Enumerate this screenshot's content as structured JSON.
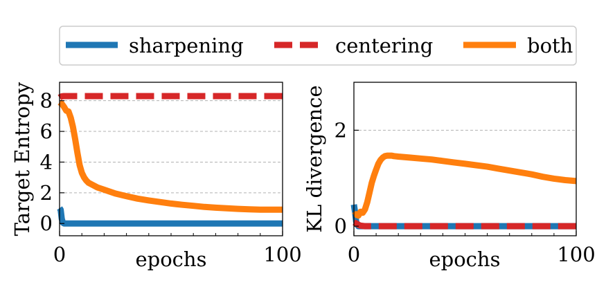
{
  "legend": {
    "items": [
      {
        "label": "sharpening",
        "color": "#1f77b4",
        "style": "solid"
      },
      {
        "label": "centering",
        "color": "#d62728",
        "style": "dashed"
      },
      {
        "label": "both",
        "color": "#ff7f0e",
        "style": "solid"
      }
    ],
    "placement": "top-center"
  },
  "chart_data": [
    {
      "type": "line",
      "xlabel": "epochs",
      "ylabel": "Target Entropy",
      "xlim": [
        0,
        100
      ],
      "ylim": [
        -0.8,
        9.2
      ],
      "x_ticks": [
        0,
        100
      ],
      "y_ticks": [
        0,
        2,
        4,
        6,
        8
      ],
      "grid": "horizontal-dashed",
      "series": [
        {
          "name": "sharpening",
          "color": "#1f77b4",
          "dash": "solid",
          "x": [
            0,
            0.5,
            1,
            1.5,
            2,
            100
          ],
          "y": [
            1.0,
            0.9,
            0.3,
            0.05,
            0.0,
            0.0
          ]
        },
        {
          "name": "centering",
          "color": "#d62728",
          "dash": "dashed",
          "x": [
            0,
            0.5,
            1,
            2,
            3,
            100
          ],
          "y": [
            8.2,
            8.25,
            8.28,
            8.3,
            8.3,
            8.3
          ]
        },
        {
          "name": "both",
          "color": "#ff7f0e",
          "dash": "solid",
          "x": [
            0,
            1,
            2,
            3,
            4,
            5,
            6,
            7,
            8,
            9,
            10,
            11,
            12,
            13,
            15,
            17,
            20,
            25,
            30,
            35,
            40,
            45,
            50,
            55,
            60,
            65,
            70,
            75,
            80,
            85,
            90,
            95,
            100
          ],
          "y": [
            7.9,
            7.8,
            7.6,
            7.35,
            7.3,
            6.9,
            6.3,
            5.5,
            4.6,
            3.8,
            3.3,
            3.0,
            2.8,
            2.65,
            2.5,
            2.35,
            2.2,
            1.95,
            1.78,
            1.62,
            1.5,
            1.4,
            1.3,
            1.22,
            1.15,
            1.08,
            1.03,
            0.99,
            0.95,
            0.92,
            0.9,
            0.9,
            0.9
          ]
        }
      ]
    },
    {
      "type": "line",
      "xlabel": "epochs",
      "ylabel": "KL divergence",
      "xlim": [
        0,
        100
      ],
      "ylim": [
        -0.2,
        3.0
      ],
      "x_ticks": [
        0,
        100
      ],
      "y_ticks": [
        0,
        2
      ],
      "grid": "horizontal-dashed",
      "series": [
        {
          "name": "sharpening",
          "color": "#1f77b4",
          "dash": "solid",
          "x": [
            0,
            0.5,
            1,
            1.5,
            2,
            3,
            100
          ],
          "y": [
            0.45,
            0.3,
            0.1,
            0.03,
            0.0,
            0.0,
            0.0
          ]
        },
        {
          "name": "centering",
          "color": "#d62728",
          "dash": "dashed",
          "x": [
            0,
            1,
            2,
            3,
            5,
            100
          ],
          "y": [
            0.08,
            0.06,
            0.03,
            0.01,
            0.0,
            0.0
          ]
        },
        {
          "name": "both",
          "color": "#ff7f0e",
          "dash": "solid",
          "x": [
            0,
            1,
            2,
            3,
            4,
            5,
            6,
            7,
            8,
            9,
            10,
            11,
            12,
            13,
            14,
            15,
            16,
            17,
            18,
            20,
            25,
            30,
            35,
            40,
            45,
            50,
            55,
            60,
            65,
            70,
            75,
            80,
            85,
            90,
            95,
            100
          ],
          "y": [
            0.22,
            0.25,
            0.22,
            0.3,
            0.28,
            0.35,
            0.5,
            0.7,
            0.9,
            1.05,
            1.18,
            1.3,
            1.38,
            1.43,
            1.46,
            1.47,
            1.47,
            1.47,
            1.46,
            1.45,
            1.43,
            1.41,
            1.39,
            1.36,
            1.33,
            1.3,
            1.27,
            1.24,
            1.2,
            1.16,
            1.12,
            1.08,
            1.03,
            0.99,
            0.96,
            0.94
          ]
        }
      ]
    }
  ]
}
